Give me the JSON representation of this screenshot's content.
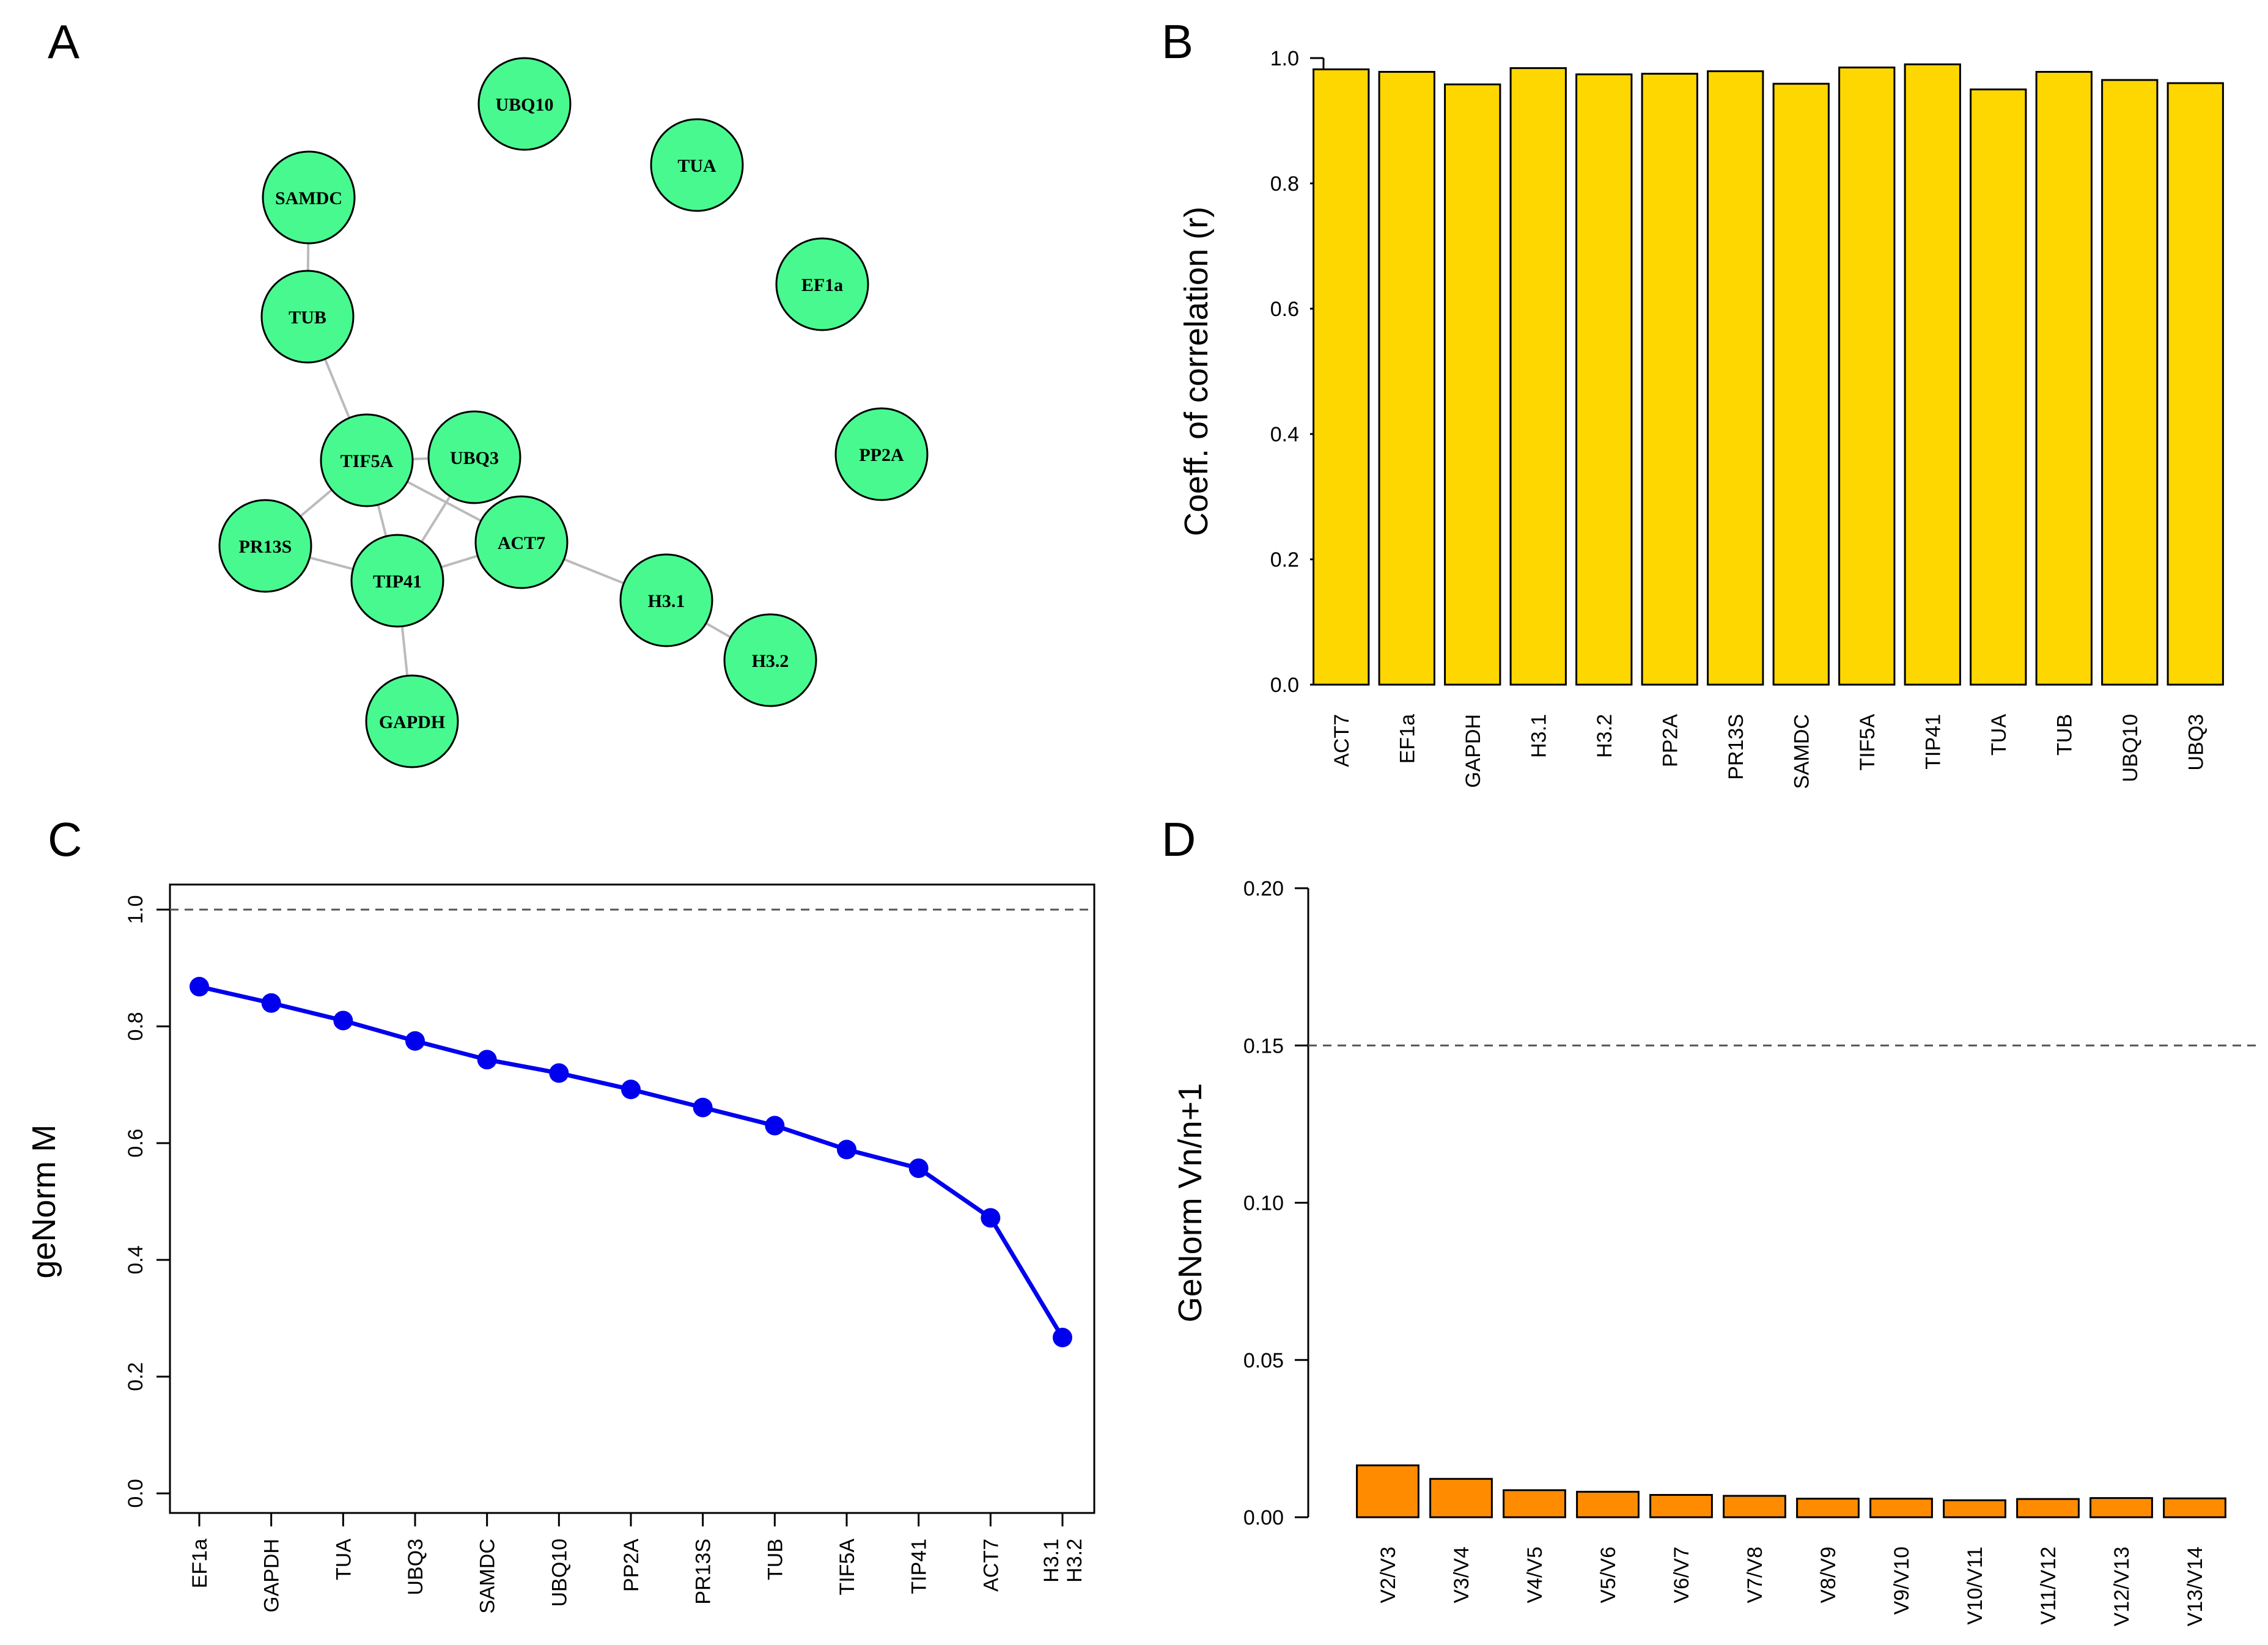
{
  "figure": {
    "panel_labels": [
      "A",
      "B",
      "C",
      "D"
    ],
    "colors": {
      "node_fill": "#48F990",
      "edge": "#BBBBBB",
      "bar_b": "#FFD700",
      "line_c": "#0000EE",
      "bar_d": "#FF8C00",
      "dashed": "#555555"
    }
  },
  "chart_data": [
    {
      "panel": "A",
      "type": "network",
      "nodes": [
        "UBQ10",
        "TUA",
        "SAMDC",
        "EF1a",
        "TUB",
        "PP2A",
        "TIF5A",
        "UBQ3",
        "PR13S",
        "ACT7",
        "TIP41",
        "H3.1",
        "H3.2",
        "GAPDH"
      ],
      "edges": [
        [
          "SAMDC",
          "TUB"
        ],
        [
          "TUB",
          "TIF5A"
        ],
        [
          "TIF5A",
          "UBQ3"
        ],
        [
          "TIF5A",
          "PR13S"
        ],
        [
          "TIF5A",
          "TIP41"
        ],
        [
          "TIF5A",
          "ACT7"
        ],
        [
          "UBQ3",
          "TIP41"
        ],
        [
          "PR13S",
          "TIP41"
        ],
        [
          "TIP41",
          "ACT7"
        ],
        [
          "TIP41",
          "GAPDH"
        ],
        [
          "ACT7",
          "H3.1"
        ],
        [
          "H3.1",
          "H3.2"
        ]
      ]
    },
    {
      "panel": "B",
      "type": "bar",
      "title": "",
      "xlabel": "",
      "ylabel": "Coeff. of correlation (r)",
      "categories": [
        "ACT7",
        "EF1a",
        "GAPDH",
        "H3.1",
        "H3.2",
        "PP2A",
        "PR13S",
        "SAMDC",
        "TIF5A",
        "TIP41",
        "TUA",
        "TUB",
        "UBQ10",
        "UBQ3"
      ],
      "values": [
        0.982,
        0.978,
        0.958,
        0.984,
        0.974,
        0.975,
        0.979,
        0.959,
        0.985,
        0.99,
        0.95,
        0.978,
        0.965,
        0.96
      ],
      "ylim": [
        0,
        1.0
      ],
      "yticks": [
        "0.0",
        "0.2",
        "0.4",
        "0.6",
        "0.8",
        "1.0"
      ]
    },
    {
      "panel": "C",
      "type": "line",
      "title": "",
      "xlabel": "",
      "ylabel": "geNorm M",
      "categories": [
        "EF1a",
        "GAPDH",
        "TUA",
        "UBQ3",
        "SAMDC",
        "UBQ10",
        "PP2A",
        "PR13S",
        "TUB",
        "TIF5A",
        "TIP41",
        "ACT7",
        "H3.1\nH3.2"
      ],
      "values": [
        0.868,
        0.84,
        0.81,
        0.775,
        0.743,
        0.72,
        0.692,
        0.661,
        0.63,
        0.589,
        0.557,
        0.472,
        0.267
      ],
      "threshold": 1.0,
      "ylim": [
        0,
        1.0
      ],
      "yticks": [
        "0.0",
        "0.2",
        "0.4",
        "0.6",
        "0.8",
        "1.0"
      ]
    },
    {
      "panel": "D",
      "type": "bar",
      "title": "",
      "xlabel": "",
      "ylabel": "GeNorm Vn/n+1",
      "categories": [
        "V2/V3",
        "V3/V4",
        "V4/V5",
        "V5/V6",
        "V6/V7",
        "V7/V8",
        "V8/V9",
        "V9/V10",
        "V10/V11",
        "V11/V12",
        "V12/V13",
        "V13/V14"
      ],
      "values": [
        0.0165,
        0.0122,
        0.0086,
        0.0081,
        0.0071,
        0.0068,
        0.0059,
        0.0059,
        0.0054,
        0.0058,
        0.0061,
        0.006
      ],
      "threshold": 0.15,
      "ylim": [
        0,
        0.2
      ],
      "yticks": [
        "0.00",
        "0.05",
        "0.10",
        "0.15",
        "0.20"
      ]
    }
  ]
}
